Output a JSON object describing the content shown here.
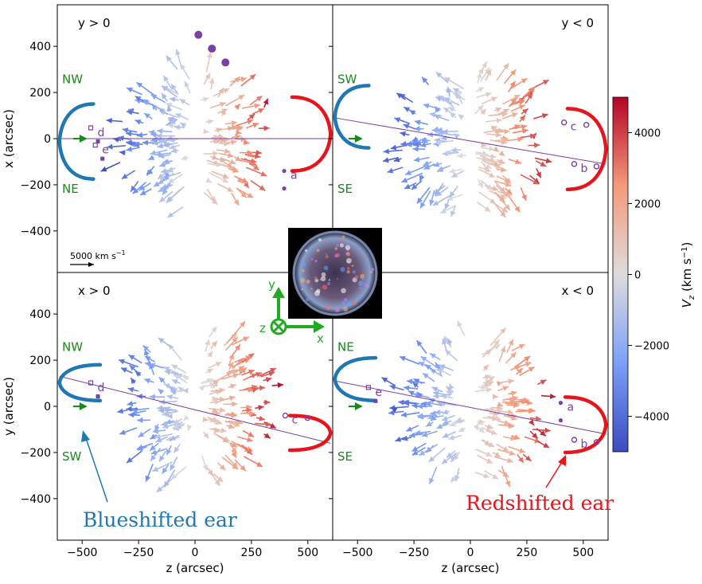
{
  "chart_data": {
    "type": "scatter",
    "subtype": "velocity-vector quiver (4 panels)",
    "colors": {
      "blue_ear": "#1f77b4",
      "red_ear": "#e8141b",
      "marker": "#7b3fa8",
      "label_green": "#1a8a1a",
      "axes_green": "#22aa22"
    },
    "panels": [
      {
        "id": "tl",
        "label": "y > 0",
        "label_align": "left",
        "dir_top": "NW",
        "dir_bottom": "NE",
        "ylabel": "x (arcsec)",
        "show_y_ticks": true,
        "show_x_ticks": false,
        "xlim": [
          -610,
          610
        ],
        "ylim": [
          -580,
          580
        ],
        "reference_line": {
          "from": [
            -600,
            0
          ],
          "to": [
            600,
            0
          ]
        },
        "blue_ear": {
          "x_outer": -600,
          "x_tip": -450,
          "y_top": 150,
          "y_bottom": -175
        },
        "red_ear": {
          "x_outer": 600,
          "x_tip": 430,
          "y_top": 180,
          "y_bottom": -140
        },
        "labeled_points": [
          {
            "name": "d",
            "x": -460,
            "y": 45,
            "style": "square"
          },
          {
            "name": "e",
            "x": -440,
            "y": -30,
            "style": "square"
          },
          {
            "name": "a",
            "x": 395,
            "y": -140,
            "style": "dot"
          }
        ],
        "solid_points": [
          {
            "x": 15,
            "y": 450
          },
          {
            "x": 75,
            "y": 390
          },
          {
            "x": 135,
            "y": 330
          }
        ],
        "seed": 11
      },
      {
        "id": "tr",
        "label": "y < 0",
        "label_align": "right",
        "dir_top": "SW",
        "dir_bottom": "SE",
        "ylabel": "",
        "show_y_ticks": false,
        "show_x_ticks": false,
        "xlim": [
          -610,
          610
        ],
        "ylim": [
          -580,
          580
        ],
        "reference_line": {
          "from": [
            -600,
            90
          ],
          "to": [
            600,
            -110
          ]
        },
        "blue_ear": {
          "x_outer": -600,
          "x_tip": -450,
          "y_top": 230,
          "y_bottom": -40
        },
        "red_ear": {
          "x_outer": 600,
          "x_tip": 430,
          "y_top": 130,
          "y_bottom": -220
        },
        "labeled_points": [
          {
            "name": "c",
            "x": 415,
            "y": 70,
            "style": "circle"
          },
          {
            "name": "b",
            "x": 460,
            "y": -110,
            "style": "circle"
          }
        ],
        "solid_points": [],
        "seed": 23
      },
      {
        "id": "bl",
        "label": "x > 0",
        "label_align": "left",
        "dir_top": "NW",
        "dir_bottom": "SW",
        "ylabel": "y (arcsec)",
        "show_y_ticks": true,
        "show_x_ticks": true,
        "xlim": [
          -610,
          610
        ],
        "ylim": [
          -580,
          580
        ],
        "reference_line": {
          "from": [
            -600,
            130
          ],
          "to": [
            600,
            -160
          ]
        },
        "blue_ear": {
          "x_outer": -600,
          "x_tip": -420,
          "y_top": 180,
          "y_bottom": 25
        },
        "red_ear": {
          "x_outer": 600,
          "x_tip": 420,
          "y_top": -40,
          "y_bottom": -190
        },
        "labeled_points": [
          {
            "name": "d",
            "x": -460,
            "y": 100,
            "style": "square"
          },
          {
            "name": "c",
            "x": 400,
            "y": -40,
            "style": "circle"
          }
        ],
        "solid_points": [],
        "seed": 37
      },
      {
        "id": "br",
        "label": "x < 0",
        "label_align": "right",
        "dir_top": "NE",
        "dir_bottom": "SE",
        "ylabel": "",
        "show_y_ticks": false,
        "show_x_ticks": true,
        "xlim": [
          -610,
          610
        ],
        "ylim": [
          -580,
          580
        ],
        "reference_line": {
          "from": [
            -600,
            110
          ],
          "to": [
            600,
            -120
          ]
        },
        "blue_ear": {
          "x_outer": -600,
          "x_tip": -420,
          "y_top": 210,
          "y_bottom": 25
        },
        "red_ear": {
          "x_outer": 600,
          "x_tip": 420,
          "y_top": 40,
          "y_bottom": -200
        },
        "labeled_points": [
          {
            "name": "e",
            "x": -450,
            "y": 80,
            "style": "square"
          },
          {
            "name": "a",
            "x": 400,
            "y": 15,
            "style": "dot"
          },
          {
            "name": "b",
            "x": 460,
            "y": -145,
            "style": "circle"
          }
        ],
        "solid_points": [],
        "seed": 53
      }
    ],
    "ticks": {
      "x": [
        -500,
        -250,
        0,
        250,
        500
      ],
      "x_labels": [
        "−500",
        "−250",
        "0",
        "250",
        "500"
      ],
      "y": [
        -400,
        -200,
        0,
        200,
        400
      ],
      "y_labels": [
        "−400",
        "−200",
        "0",
        "200",
        "400"
      ]
    },
    "xlabel": "z (arcsec)",
    "scale_bar": {
      "label": "5000 km s",
      "sup": "−1"
    },
    "colorbar": {
      "label": "V",
      "label_sub": "z",
      "label_unit": " (km s",
      "label_unit_sup": "−1",
      "label_close": ")",
      "range": [
        -5000,
        5000
      ],
      "ticks": [
        4000,
        2000,
        0,
        -2000,
        -4000
      ],
      "tick_labels": [
        "4000",
        "2000",
        "0",
        "−2000",
        "−4000"
      ],
      "cmap": "coolwarm"
    },
    "axes_glyph": {
      "y": "y",
      "x": "x",
      "z": "z"
    },
    "annotations": {
      "blue_label": "Blueshifted ear",
      "red_label": "Redshifted ear"
    }
  }
}
